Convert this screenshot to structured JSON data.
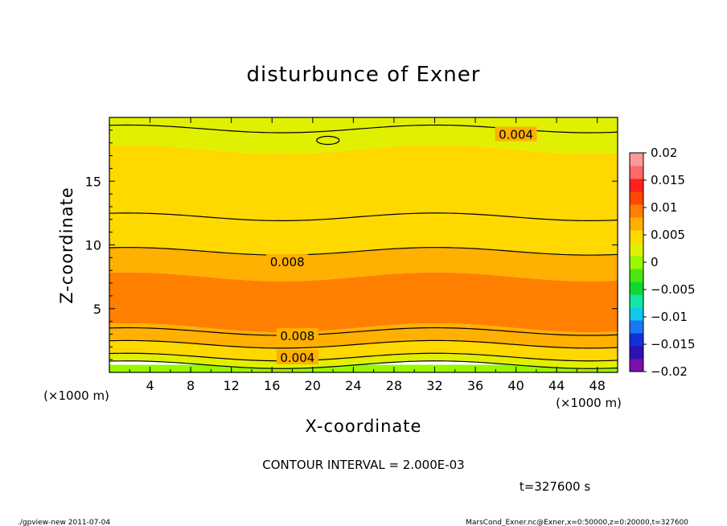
{
  "chart_data": {
    "type": "heatmap",
    "title": "disturbunce of Exner",
    "xlabel": "X-coordinate",
    "ylabel": "Z-coordinate",
    "x_unit": "(×1000 m)",
    "y_unit": "(×1000 m)",
    "xlim": [
      0,
      50
    ],
    "ylim": [
      0,
      20
    ],
    "x_ticks": [
      4,
      8,
      12,
      16,
      20,
      24,
      28,
      32,
      36,
      40,
      44,
      48
    ],
    "y_ticks": [
      5,
      10,
      15
    ],
    "x_tick_labels": [
      "4",
      "8",
      "12",
      "16",
      "20",
      "24",
      "28",
      "32",
      "36",
      "40",
      "44",
      "48"
    ],
    "y_tick_labels": [
      "5",
      "10",
      "15"
    ],
    "colorbar": {
      "levels": [
        -0.02,
        -0.015,
        -0.01,
        -0.005,
        0,
        0.005,
        0.01,
        0.015,
        0.02
      ],
      "labels": [
        "0.02",
        "0.015",
        "0.01",
        "0.005",
        "0",
        "−0.005",
        "−0.01",
        "−0.015",
        "−0.02"
      ],
      "colors": [
        "#7a10a8",
        "#3010b0",
        "#1030d8",
        "#1878f8",
        "#10c8e8",
        "#10e8a0",
        "#10d830",
        "#48e810",
        "#98f800",
        "#e0f000",
        "#ffd800",
        "#ffb000",
        "#ff8000",
        "#ff4800",
        "#ff2020",
        "#ff6868",
        "#ff9898"
      ]
    },
    "bands": [
      {
        "z_bottom": 0.0,
        "z_top": 0.6,
        "value": 0.001
      },
      {
        "z_bottom": 0.6,
        "z_top": 1.2,
        "value": 0.003
      },
      {
        "z_bottom": 1.2,
        "z_top": 2.2,
        "value": 0.005
      },
      {
        "z_bottom": 2.2,
        "z_top": 3.5,
        "value": 0.007
      },
      {
        "z_bottom": 3.5,
        "z_top": 7.5,
        "value": 0.009
      },
      {
        "z_bottom": 7.5,
        "z_top": 9.5,
        "value": 0.007
      },
      {
        "z_bottom": 9.5,
        "z_top": 12.0,
        "value": 0.005
      },
      {
        "z_bottom": 12.0,
        "z_top": 17.5,
        "value": 0.004
      },
      {
        "z_bottom": 17.5,
        "z_top": 20.0,
        "value": 0.003
      }
    ],
    "contour_labels": [
      {
        "text": "0.004",
        "x": 40,
        "z": 18.7
      },
      {
        "text": "0.008",
        "x": 17.5,
        "z": 8.7
      },
      {
        "text": "0.008",
        "x": 18.5,
        "z": 2.9
      },
      {
        "text": "0.004",
        "x": 18.5,
        "z": 1.2
      }
    ],
    "contour_interval_text": "CONTOUR INTERVAL = 2.000E-03",
    "time_text": "t=327600 s"
  },
  "footer": {
    "left": "./gpview-new   2011-07-04",
    "right": "MarsCond_Exner.nc@Exner,x=0:50000,z=0:20000,t=327600"
  },
  "colors": {
    "axis": "#000000",
    "background": "#ffffff"
  }
}
